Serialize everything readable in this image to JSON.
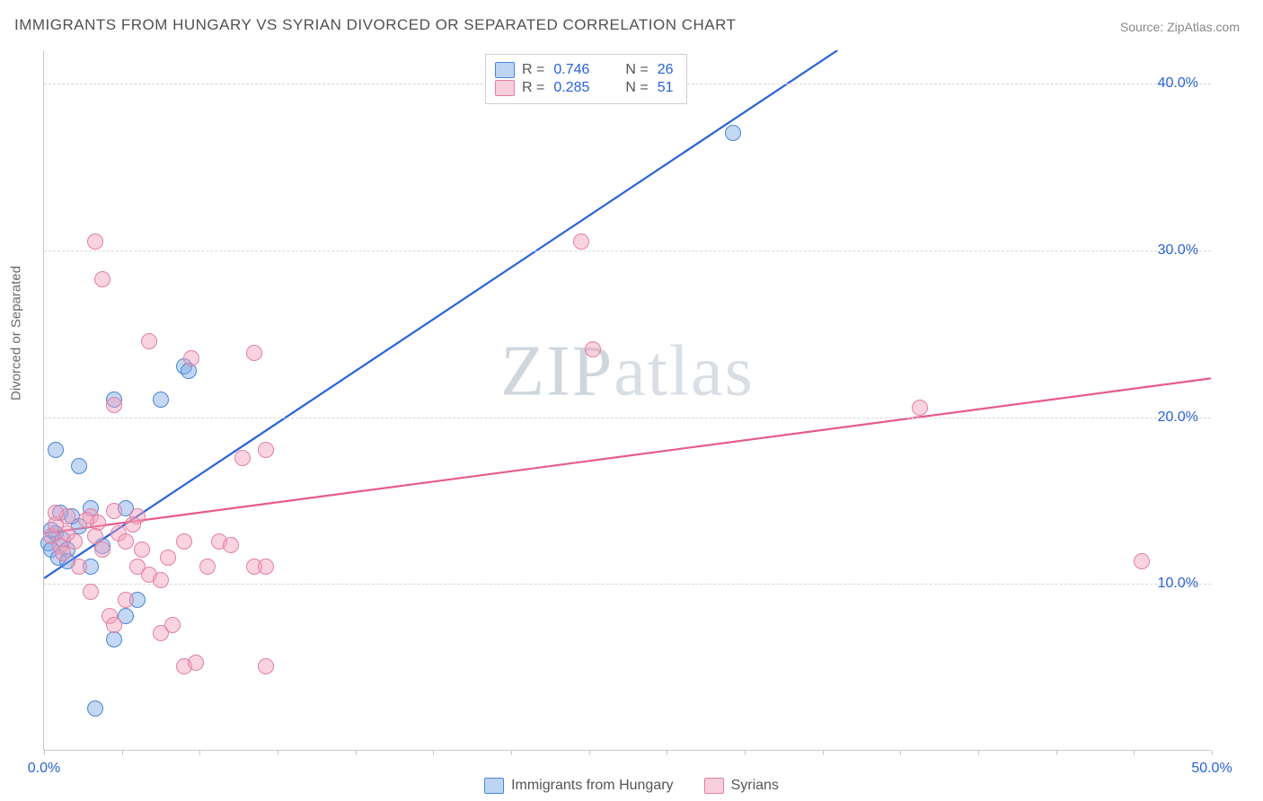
{
  "title": "IMMIGRANTS FROM HUNGARY VS SYRIAN DIVORCED OR SEPARATED CORRELATION CHART",
  "source_label": "Source:",
  "source_name": "ZipAtlas.com",
  "watermark": {
    "text_bold": "ZIP",
    "text_light": "atlas"
  },
  "chart": {
    "type": "scatter",
    "ylabel": "Divorced or Separated",
    "xlim": [
      0,
      50
    ],
    "ylim": [
      0,
      42
    ],
    "xtick_labels": [
      "0.0%",
      "50.0%"
    ],
    "xtick_positions": [
      0,
      50
    ],
    "ytick_labels": [
      "10.0%",
      "20.0%",
      "30.0%",
      "40.0%"
    ],
    "ytick_positions": [
      10,
      20,
      30,
      40
    ],
    "grid_positions": [
      10,
      20,
      30,
      40
    ],
    "background_color": "#ffffff",
    "grid_color": "#d8d8d8",
    "axis_color": "#c8c8c8",
    "series": [
      {
        "name": "Immigrants from Hungary",
        "color_fill": "rgba(124,169,230,0.45)",
        "color_stroke": "#4a85d6",
        "marker_size": 18,
        "r_value": "0.746",
        "n_value": "26",
        "trend": {
          "x1": 0,
          "y1": 10.3,
          "x2": 34,
          "y2": 42,
          "color": "#2962d9",
          "width": 2.2
        },
        "points": [
          [
            0.2,
            12.4
          ],
          [
            0.5,
            13.0
          ],
          [
            0.3,
            12.0
          ],
          [
            0.8,
            12.6
          ],
          [
            1.0,
            12.0
          ],
          [
            0.6,
            11.5
          ],
          [
            1.2,
            14.0
          ],
          [
            1.5,
            13.4
          ],
          [
            0.5,
            18.0
          ],
          [
            1.5,
            17.0
          ],
          [
            3.0,
            21.0
          ],
          [
            5.0,
            21.0
          ],
          [
            3.5,
            14.5
          ],
          [
            2.5,
            12.2
          ],
          [
            4.0,
            9.0
          ],
          [
            3.5,
            8.0
          ],
          [
            3.0,
            6.6
          ],
          [
            2.0,
            11.0
          ],
          [
            2.2,
            2.5
          ],
          [
            6.0,
            23.0
          ],
          [
            6.2,
            22.7
          ],
          [
            2.0,
            14.5
          ],
          [
            0.7,
            14.2
          ],
          [
            1.0,
            11.3
          ],
          [
            29.5,
            37.0
          ],
          [
            0.3,
            13.2
          ]
        ]
      },
      {
        "name": "Syrians",
        "color_fill": "rgba(242,160,186,0.45)",
        "color_stroke": "#e37fa3",
        "marker_size": 18,
        "r_value": "0.285",
        "n_value": "51",
        "trend": {
          "x1": 0,
          "y1": 13.0,
          "x2": 50,
          "y2": 22.3,
          "color": "#e75a8a",
          "width": 2.2
        },
        "points": [
          [
            0.3,
            12.8
          ],
          [
            0.5,
            13.5
          ],
          [
            0.7,
            12.2
          ],
          [
            1.0,
            13.0
          ],
          [
            1.3,
            12.5
          ],
          [
            1.5,
            11.0
          ],
          [
            2.0,
            14.0
          ],
          [
            2.3,
            13.6
          ],
          [
            2.5,
            12.0
          ],
          [
            3.0,
            14.3
          ],
          [
            3.2,
            13.0
          ],
          [
            3.5,
            12.5
          ],
          [
            4.0,
            11.0
          ],
          [
            4.5,
            10.5
          ],
          [
            5.0,
            10.2
          ],
          [
            5.3,
            11.5
          ],
          [
            2.0,
            9.5
          ],
          [
            2.8,
            8.0
          ],
          [
            3.0,
            7.5
          ],
          [
            3.5,
            9.0
          ],
          [
            5.0,
            7.0
          ],
          [
            5.5,
            7.5
          ],
          [
            6.0,
            5.0
          ],
          [
            6.5,
            5.2
          ],
          [
            9.5,
            5.0
          ],
          [
            7.0,
            11.0
          ],
          [
            7.5,
            12.5
          ],
          [
            8.0,
            12.3
          ],
          [
            9.0,
            11.0
          ],
          [
            9.5,
            11.0
          ],
          [
            8.5,
            17.5
          ],
          [
            9.5,
            18.0
          ],
          [
            3.0,
            20.7
          ],
          [
            4.5,
            24.5
          ],
          [
            2.5,
            28.2
          ],
          [
            2.2,
            30.5
          ],
          [
            9.0,
            23.8
          ],
          [
            6.3,
            23.5
          ],
          [
            4.0,
            14.0
          ],
          [
            23.0,
            30.5
          ],
          [
            23.5,
            24.0
          ],
          [
            37.5,
            20.5
          ],
          [
            47.0,
            11.3
          ],
          [
            1.8,
            13.8
          ],
          [
            2.2,
            12.8
          ],
          [
            1.0,
            14.0
          ],
          [
            0.8,
            11.8
          ],
          [
            0.5,
            14.2
          ],
          [
            3.8,
            13.5
          ],
          [
            4.2,
            12.0
          ],
          [
            6.0,
            12.5
          ]
        ]
      }
    ]
  },
  "legend_top": {
    "r_label": "R =",
    "n_label": "N ="
  },
  "legend_bottom": {
    "items": [
      "Immigrants from Hungary",
      "Syrians"
    ]
  }
}
